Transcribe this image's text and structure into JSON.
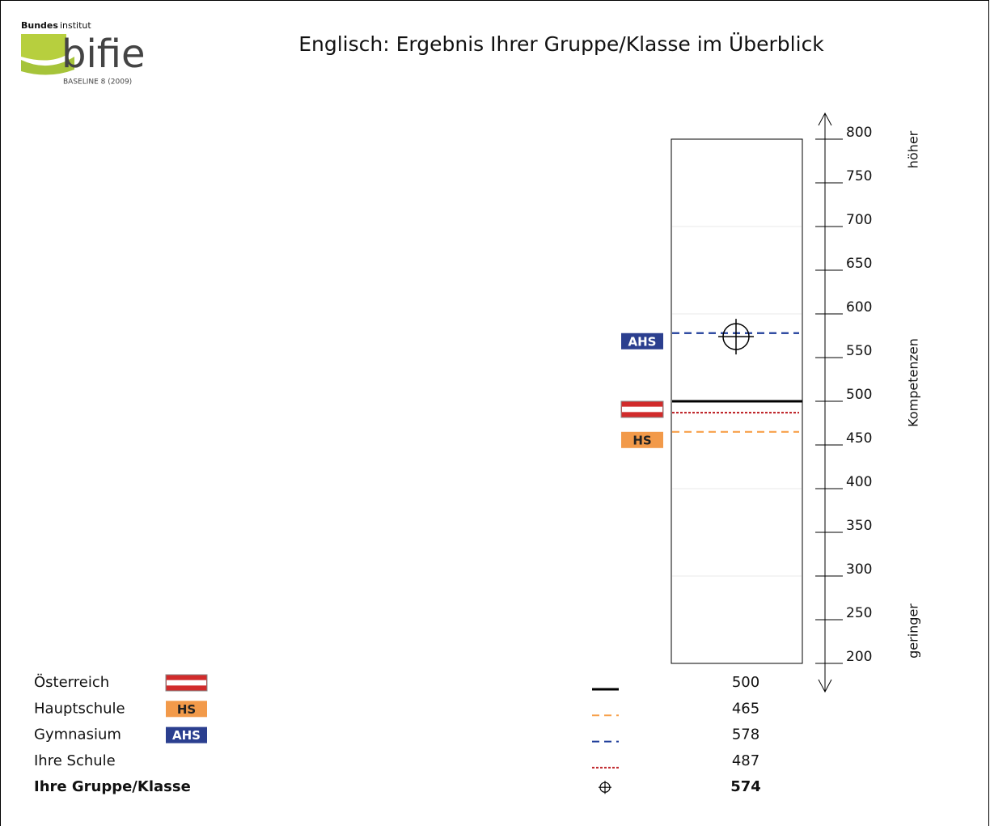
{
  "logo": {
    "bold": "Bundes",
    "rest": "institut",
    "name": "bifie",
    "sub": "BASELINE 8 (2009)"
  },
  "chart_data": {
    "type": "level",
    "title": "Englisch: Ergebnis Ihrer Gruppe/Klasse im Überblick",
    "ylim": [
      200,
      800
    ],
    "yticks": [
      200,
      250,
      300,
      350,
      400,
      450,
      500,
      550,
      600,
      650,
      700,
      750,
      800
    ],
    "gridlines": [
      300,
      400,
      500,
      600,
      700
    ],
    "axis_labels": {
      "top": "höher",
      "middle": "Kompetenzen",
      "bottom": "geringer"
    },
    "series": [
      {
        "name": "Österreich",
        "value": 500,
        "color": "#000000",
        "dash": "solid",
        "flag": true
      },
      {
        "name": "Hauptschule",
        "value": 465,
        "color": "#f7a04a",
        "dash": "dashed",
        "badge": "HS",
        "badge_color": "#f29a4a",
        "badge_text_color": "#222222"
      },
      {
        "name": "Gymnasium",
        "value": 578,
        "color": "#1f3d9a",
        "dash": "dashed",
        "badge": "AHS",
        "badge_color": "#2b3f8f",
        "badge_text_color": "#ffffff"
      },
      {
        "name": "Ihre Schule",
        "value": 487,
        "color": "#c0282d",
        "dash": "dotted"
      },
      {
        "name": "Ihre Gruppe/Klasse",
        "value": 574,
        "color": "#000000",
        "marker": "crosshair",
        "bold": true
      }
    ]
  }
}
